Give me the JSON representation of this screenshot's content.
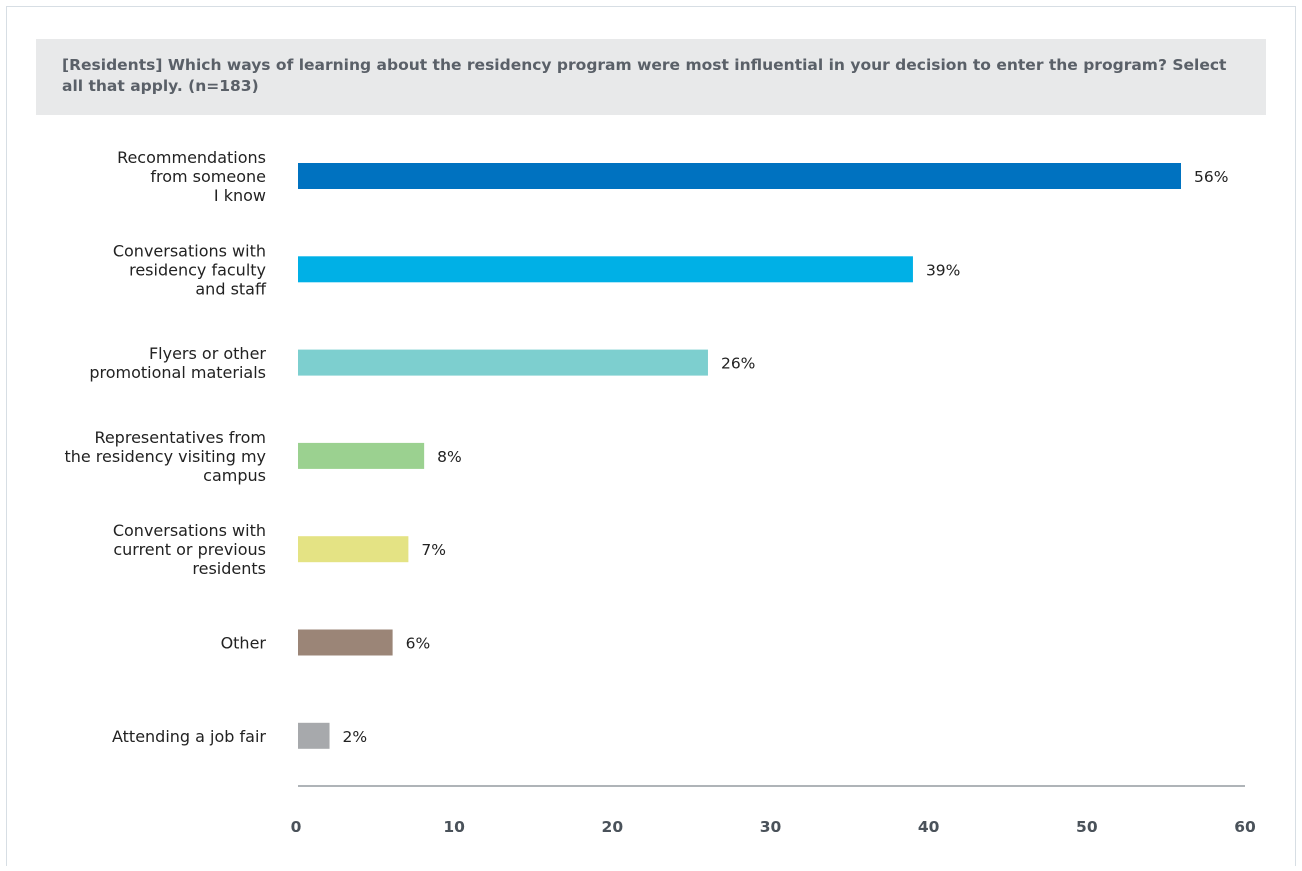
{
  "chart_data": {
    "type": "bar",
    "orientation": "horizontal",
    "title": "[Residents] Which ways of learning about the residency program were most influential in your decision to enter the program? Select all that apply. (n=183)",
    "categories": [
      [
        "Recommendations",
        "from someone",
        "I know"
      ],
      [
        "Conversations with",
        "residency faculty",
        "and staff"
      ],
      [
        "Flyers or other",
        "promotional materials"
      ],
      [
        "Representatives from",
        "the residency visiting my",
        "campus"
      ],
      [
        "Conversations with",
        "current or previous",
        "residents"
      ],
      [
        "Other"
      ],
      [
        "Attending a job fair"
      ]
    ],
    "values": [
      56,
      39,
      26,
      8,
      7,
      6,
      2
    ],
    "value_labels": [
      "56%",
      "39%",
      "26%",
      "8%",
      "7%",
      "6%",
      "2%"
    ],
    "colors": [
      "#0072c0",
      "#00b0e6",
      "#7dcfcf",
      "#9bd190",
      "#e4e384",
      "#9b8577",
      "#a7a9ac"
    ],
    "xlim": [
      0,
      60
    ],
    "xticks": [
      "0",
      "10",
      "20",
      "30",
      "40",
      "50",
      "60"
    ],
    "grid": false,
    "legend": "none"
  }
}
